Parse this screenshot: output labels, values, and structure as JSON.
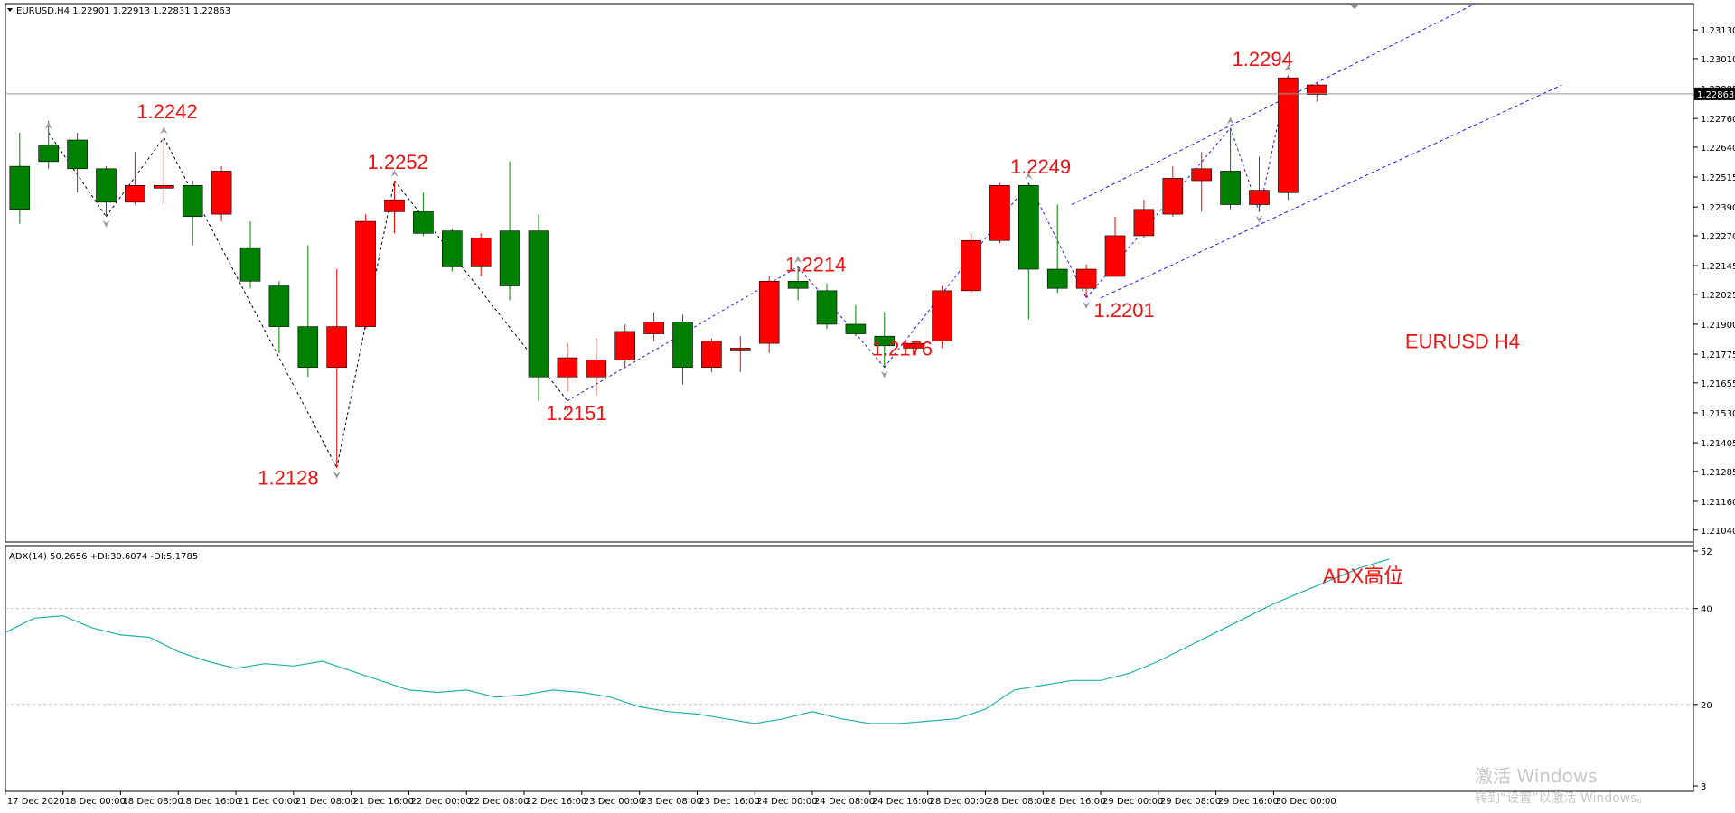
{
  "chart_data": [
    {
      "type": "candlestick",
      "header": "EURUSD,H4  1.22901 1.22913 1.22831 1.22863",
      "symbol": "EURUSD",
      "timeframe": "H4",
      "y_ticks": [
        "1.23130",
        "1.23010",
        "1.22885",
        "1.22760",
        "1.22640",
        "1.22515",
        "1.22390",
        "1.22270",
        "1.22145",
        "1.22025",
        "1.21900",
        "1.21775",
        "1.21655",
        "1.21530",
        "1.21405",
        "1.21285",
        "1.21160",
        "1.21040"
      ],
      "ylim": [
        1.2099,
        1.2324
      ],
      "current_price": "1.22863",
      "x_labels": [
        "17 Dec 2020",
        "18 Dec 00:00",
        "18 Dec 08:00",
        "18 Dec 16:00",
        "21 Dec 00:00",
        "21 Dec 08:00",
        "21 Dec 16:00",
        "22 Dec 00:00",
        "22 Dec 08:00",
        "22 Dec 16:00",
        "23 Dec 00:00",
        "23 Dec 08:00",
        "23 Dec 16:00",
        "24 Dec 00:00",
        "24 Dec 08:00",
        "24 Dec 16:00",
        "28 Dec 00:00",
        "28 Dec 08:00",
        "28 Dec 16:00",
        "29 Dec 00:00",
        "29 Dec 08:00",
        "29 Dec 16:00",
        "30 Dec 00:00"
      ],
      "candles": [
        {
          "o": 1.2256,
          "h": 1.227,
          "l": 1.2232,
          "c": 1.2238
        },
        {
          "o": 1.2265,
          "h": 1.2275,
          "l": 1.2255,
          "c": 1.2258
        },
        {
          "o": 1.2267,
          "h": 1.227,
          "l": 1.2245,
          "c": 1.2255
        },
        {
          "o": 1.2255,
          "h": 1.2256,
          "l": 1.2235,
          "c": 1.2241
        },
        {
          "o": 1.2241,
          "h": 1.2262,
          "l": 1.224,
          "c": 1.2248
        },
        {
          "o": 1.2247,
          "h": 1.2268,
          "l": 1.224,
          "c": 1.2248
        },
        {
          "o": 1.2248,
          "h": 1.225,
          "l": 1.2223,
          "c": 1.2235
        },
        {
          "o": 1.2236,
          "h": 1.2256,
          "l": 1.2233,
          "c": 1.2254
        },
        {
          "o": 1.2222,
          "h": 1.2233,
          "l": 1.2205,
          "c": 1.2208
        },
        {
          "o": 1.2206,
          "h": 1.2208,
          "l": 1.2178,
          "c": 1.2189
        },
        {
          "o": 1.2189,
          "h": 1.2223,
          "l": 1.2168,
          "c": 1.2172
        },
        {
          "o": 1.2172,
          "h": 1.2213,
          "l": 1.213,
          "c": 1.2189
        },
        {
          "o": 1.2189,
          "h": 1.2236,
          "l": 1.2188,
          "c": 1.2233
        },
        {
          "o": 1.2237,
          "h": 1.225,
          "l": 1.2228,
          "c": 1.2242
        },
        {
          "o": 1.2237,
          "h": 1.2245,
          "l": 1.2227,
          "c": 1.2228
        },
        {
          "o": 1.2229,
          "h": 1.223,
          "l": 1.2212,
          "c": 1.2214
        },
        {
          "o": 1.2214,
          "h": 1.2228,
          "l": 1.221,
          "c": 1.2226
        },
        {
          "o": 1.2229,
          "h": 1.2258,
          "l": 1.22,
          "c": 1.2206
        },
        {
          "o": 1.2229,
          "h": 1.2236,
          "l": 1.2158,
          "c": 1.2168
        },
        {
          "o": 1.2168,
          "h": 1.2182,
          "l": 1.2162,
          "c": 1.2176
        },
        {
          "o": 1.2168,
          "h": 1.2184,
          "l": 1.216,
          "c": 1.2175
        },
        {
          "o": 1.2175,
          "h": 1.219,
          "l": 1.2172,
          "c": 1.2187
        },
        {
          "o": 1.2186,
          "h": 1.2195,
          "l": 1.2183,
          "c": 1.2191
        },
        {
          "o": 1.2191,
          "h": 1.2194,
          "l": 1.2165,
          "c": 1.2172
        },
        {
          "o": 1.2172,
          "h": 1.2184,
          "l": 1.217,
          "c": 1.2183
        },
        {
          "o": 1.218,
          "h": 1.2185,
          "l": 1.217,
          "c": 1.218
        },
        {
          "o": 1.2182,
          "h": 1.221,
          "l": 1.2178,
          "c": 1.2208
        },
        {
          "o": 1.2208,
          "h": 1.2214,
          "l": 1.22,
          "c": 1.2205
        },
        {
          "o": 1.2204,
          "h": 1.2207,
          "l": 1.2188,
          "c": 1.219
        },
        {
          "o": 1.219,
          "h": 1.2198,
          "l": 1.2185,
          "c": 1.2186
        },
        {
          "o": 1.2185,
          "h": 1.2195,
          "l": 1.2172,
          "c": 1.2181
        },
        {
          "o": 1.218,
          "h": 1.2183,
          "l": 1.2177,
          "c": 1.2182
        },
        {
          "o": 1.2183,
          "h": 1.2206,
          "l": 1.218,
          "c": 1.2204
        },
        {
          "o": 1.2204,
          "h": 1.2228,
          "l": 1.2203,
          "c": 1.2225
        },
        {
          "o": 1.2225,
          "h": 1.2249,
          "l": 1.2224,
          "c": 1.2248
        },
        {
          "o": 1.2248,
          "h": 1.2249,
          "l": 1.2192,
          "c": 1.2213
        },
        {
          "o": 1.2213,
          "h": 1.224,
          "l": 1.2203,
          "c": 1.2205
        },
        {
          "o": 1.2205,
          "h": 1.2215,
          "l": 1.2201,
          "c": 1.2213
        },
        {
          "o": 1.221,
          "h": 1.2235,
          "l": 1.221,
          "c": 1.2227
        },
        {
          "o": 1.2227,
          "h": 1.2242,
          "l": 1.2226,
          "c": 1.2238
        },
        {
          "o": 1.2236,
          "h": 1.2256,
          "l": 1.2235,
          "c": 1.2251
        },
        {
          "o": 1.225,
          "h": 1.2262,
          "l": 1.2237,
          "c": 1.2255
        },
        {
          "o": 1.2254,
          "h": 1.2272,
          "l": 1.2238,
          "c": 1.224
        },
        {
          "o": 1.224,
          "h": 1.226,
          "l": 1.2237,
          "c": 1.2246
        },
        {
          "o": 1.2245,
          "h": 1.2294,
          "l": 1.2242,
          "c": 1.2293
        },
        {
          "o": 1.2286,
          "h": 1.2291,
          "l": 1.2283,
          "c": 1.229
        }
      ],
      "zigzag": [
        {
          "i": 1,
          "p": 1.227
        },
        {
          "i": 3,
          "p": 1.2235
        },
        {
          "i": 5,
          "p": 1.2268
        },
        {
          "i": 11,
          "p": 1.213
        },
        {
          "i": 13,
          "p": 1.225
        },
        {
          "i": 19,
          "p": 1.2158
        },
        {
          "i": 27,
          "p": 1.2214
        },
        {
          "i": 30,
          "p": 1.2172
        },
        {
          "i": 35,
          "p": 1.2249
        },
        {
          "i": 37,
          "p": 1.2201
        },
        {
          "i": 42,
          "p": 1.2272
        },
        {
          "i": 43,
          "p": 1.2237
        },
        {
          "i": 44,
          "p": 1.2294
        }
      ],
      "channel": {
        "upper": [
          {
            "i": 36.5,
            "p": 1.224
          },
          {
            "i": 50.5,
            "p": 1.2324
          }
        ],
        "lower": [
          {
            "i": 37.5,
            "p": 1.2201
          },
          {
            "i": 53.5,
            "p": 1.229
          }
        ]
      },
      "annotations": [
        {
          "text": "1.2242",
          "i": 5,
          "p": 1.2276
        },
        {
          "text": "1.2128",
          "i": 9.2,
          "p": 1.2123
        },
        {
          "text": "1.2252",
          "i": 13,
          "p": 1.2255
        },
        {
          "text": "1.2151",
          "i": 19.2,
          "p": 1.215
        },
        {
          "text": "1.2214",
          "i": 27.5,
          "p": 1.2212
        },
        {
          "text": "1.2176",
          "i": 30.5,
          "p": 1.2177
        },
        {
          "text": "1.2249",
          "i": 35.3,
          "p": 1.2253
        },
        {
          "text": "1.2201",
          "i": 38.2,
          "p": 1.2193
        },
        {
          "text": "1.2294",
          "i": 43,
          "p": 1.2298
        },
        {
          "text": "EURUSD H4",
          "i": 49,
          "p": 1.218
        }
      ]
    },
    {
      "type": "line",
      "header": "ADX(14) 50.2656 +DI:30.6074 -DI:5.1785",
      "y_ticks": [
        "52",
        "40",
        "20",
        "3"
      ],
      "levels": [
        40,
        20
      ],
      "ylim": [
        3,
        52
      ],
      "annotation": "ADX高位",
      "series": [
        {
          "values": [
            35,
            38,
            38.5,
            36,
            34.5,
            34,
            31,
            29,
            27.5,
            28.5,
            28,
            29,
            27,
            25,
            23,
            22.5,
            23,
            21.5,
            22,
            23,
            22.5,
            21.5,
            19.5,
            18.5,
            18,
            17,
            16,
            17,
            18.5,
            17,
            16,
            16,
            16.5,
            17,
            19,
            23,
            24,
            25,
            25,
            26.5,
            29,
            32,
            35,
            38,
            41,
            43.5,
            46,
            48.5,
            50.3
          ]
        }
      ]
    }
  ],
  "watermark": {
    "line1": "激活 Windows",
    "line2": "转到“设置”以激活 Windows。"
  }
}
